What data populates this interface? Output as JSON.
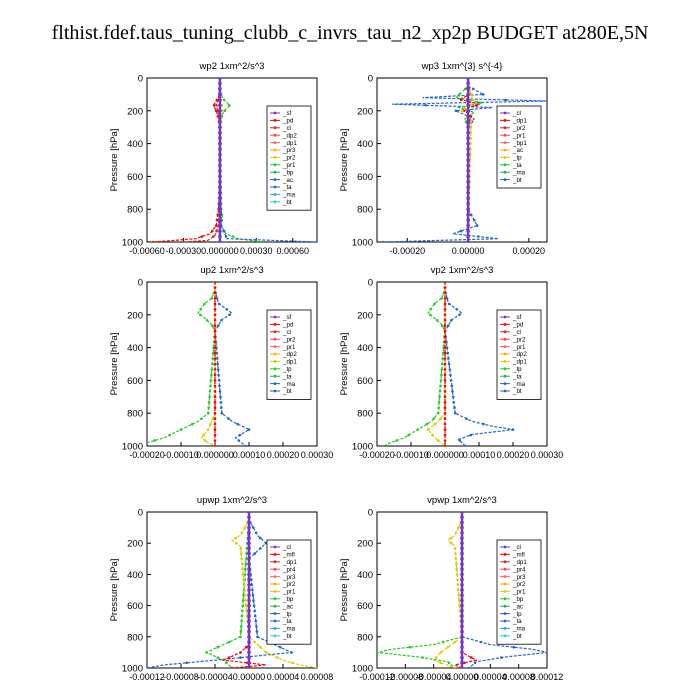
{
  "title": "flthist.fdef.taus_tuning_clubb_c_invrs_tau_n2_xp2p  BUDGET at280E,5N",
  "chart_data": [
    {
      "type": "line",
      "title": "wp2   1xm^2/s^3",
      "ylabel": "Pressure [hPa]",
      "ylim": [
        1000,
        0
      ],
      "xlim": [
        -0.0006,
        0.0008
      ],
      "xticks": [
        "-0.00060",
        "-0.00030",
        "0.000000",
        "0.00030",
        "0.00060"
      ],
      "xtick_values": [
        -0.0006,
        -0.0003,
        0.0,
        0.0003,
        0.0006
      ],
      "yticks": [
        0,
        200,
        400,
        600,
        800,
        1000
      ],
      "legend": [
        "_sf",
        "_pd",
        "_cl",
        "_dp2",
        "_dp1",
        "_pr3",
        "_pr2",
        "_pr1",
        "_bp",
        "_ac",
        "_ta",
        "_ma",
        "_bt"
      ],
      "series": [
        {
          "name": "_pd",
          "color": "#ff0000",
          "y": [
            50,
            100,
            130,
            150,
            170,
            200,
            250,
            300,
            400,
            600,
            800,
            900,
            950,
            980,
            1000
          ],
          "values": [
            0,
            0,
            -2e-05,
            -4e-05,
            -5e-05,
            -3e-05,
            -1e-05,
            0,
            0,
            0,
            -1e-05,
            -3e-05,
            -8e-05,
            -0.0002,
            -0.00055
          ]
        },
        {
          "name": "_cl",
          "color": "#dd2222",
          "y": [
            50,
            130,
            160,
            190,
            230,
            300,
            800,
            900,
            960,
            990,
            1000
          ],
          "values": [
            0,
            -1e-05,
            -3e-05,
            -2e-05,
            -1e-05,
            0,
            0,
            -1e-05,
            -4e-05,
            -0.0001,
            -0.0003
          ]
        },
        {
          "name": "_pr1",
          "color": "#22cc22",
          "y": [
            50,
            100,
            130,
            150,
            170,
            190,
            220,
            300,
            800,
            850,
            900,
            950,
            980,
            1000
          ],
          "values": [
            0,
            1e-05,
            3e-05,
            6e-05,
            8e-05,
            5e-05,
            2e-05,
            0,
            1e-05,
            2e-05,
            1e-05,
            5e-05,
            0.00015,
            0.00035
          ]
        },
        {
          "name": "_bp",
          "color": "#2266cc",
          "y": [
            50,
            300,
            900,
            980,
            1000
          ],
          "values": [
            0,
            0,
            1e-05,
            6e-05,
            0.0008
          ]
        },
        {
          "name": "_ac",
          "color": "#ddcc00",
          "y": [
            50,
            150,
            180,
            220,
            1000
          ],
          "values": [
            0,
            1e-05,
            2e-05,
            1e-05,
            0
          ]
        },
        {
          "name": "_ma",
          "color": "#7733cc",
          "y": [
            0,
            1000
          ],
          "values": [
            0,
            0
          ]
        }
      ]
    },
    {
      "type": "line",
      "title": "wp3   1xm^{3} s^{-4}",
      "ylabel": "Pressure [hPa]",
      "ylim": [
        1000,
        0
      ],
      "xlim": [
        -0.0003,
        0.00026
      ],
      "xticks": [
        "-0.00020",
        "0.00000",
        "0.00020"
      ],
      "xtick_values": [
        -0.0002,
        0.0,
        0.0002
      ],
      "yticks": [
        0,
        200,
        400,
        600,
        800,
        1000
      ],
      "legend": [
        "_cl",
        "_dp1",
        "_pr2",
        "_pr1",
        "_bp1",
        "_ac",
        "_tp",
        "_ta",
        "_ma",
        "_bt"
      ],
      "series": [
        {
          "name": "_tp",
          "color": "#2266cc",
          "y": [
            50,
            100,
            120,
            140,
            160,
            180,
            200,
            250,
            300,
            800,
            900,
            950,
            980,
            1000
          ],
          "values": [
            0,
            5e-05,
            -0.00015,
            0.00026,
            -0.00025,
            8e-05,
            -4e-05,
            2e-05,
            0,
            0,
            3e-05,
            -5e-05,
            0.0001,
            -0.00028
          ]
        },
        {
          "name": "_dp1",
          "color": "#ff0000",
          "y": [
            50,
            100,
            130,
            160,
            190,
            230,
            300,
            1000
          ],
          "values": [
            0,
            1e-05,
            -3e-05,
            4e-05,
            -2e-05,
            1e-05,
            0,
            0
          ]
        },
        {
          "name": "_ac",
          "color": "#22cc22",
          "y": [
            50,
            120,
            150,
            180,
            210,
            250,
            300,
            1000
          ],
          "values": [
            0,
            -4e-05,
            5e-05,
            -3e-05,
            2e-05,
            -1e-05,
            0,
            0
          ]
        },
        {
          "name": "_pr2",
          "color": "#ddcc00",
          "y": [
            50,
            150,
            200,
            250,
            1000
          ],
          "values": [
            0,
            2e-05,
            -2e-05,
            1e-05,
            0
          ]
        },
        {
          "name": "_ma",
          "color": "#7733cc",
          "y": [
            0,
            1000
          ],
          "values": [
            0,
            0
          ]
        }
      ]
    },
    {
      "type": "line",
      "title": "up2   1xm^2/s^3",
      "ylabel": "Pressure [hPa]",
      "ylim": [
        1000,
        0
      ],
      "xlim": [
        -0.0002,
        0.0003
      ],
      "xticks": [
        "-0.00020",
        "-0.00010",
        "0.000000",
        "0.00010",
        "0.00020",
        "0.00030"
      ],
      "xtick_values": [
        -0.0002,
        -0.0001,
        0.0,
        0.0001,
        0.0002,
        0.0003
      ],
      "yticks": [
        0,
        200,
        400,
        600,
        800,
        1000
      ],
      "legend": [
        "_sf",
        "_pd",
        "_cl",
        "_pr2",
        "_pr1",
        "_dp2",
        "_dp1",
        "_tp",
        "_ta",
        "_ma",
        "_bt"
      ],
      "series": [
        {
          "name": "_pr1",
          "color": "#22cc22",
          "y": [
            50,
            100,
            130,
            160,
            190,
            220,
            260,
            300,
            800,
            850,
            900,
            950,
            980,
            1000
          ],
          "values": [
            0,
            -1e-05,
            -3e-05,
            -4e-05,
            -5e-05,
            -3e-05,
            -1e-05,
            0,
            -2e-05,
            -5e-05,
            -0.0001,
            -0.00015,
            -0.0002,
            -0.00022
          ]
        },
        {
          "name": "_tp",
          "color": "#2266cc",
          "y": [
            50,
            130,
            160,
            190,
            230,
            300,
            800,
            850,
            900,
            950,
            1000
          ],
          "values": [
            0,
            1e-05,
            3e-05,
            5e-05,
            2e-05,
            0,
            2e-05,
            5e-05,
            0.0001,
            6e-05,
            9e-05
          ]
        },
        {
          "name": "_pr2",
          "color": "#ddcc00",
          "y": [
            50,
            800,
            900,
            950,
            980,
            1000
          ],
          "values": [
            0,
            0,
            -2e-05,
            -4e-05,
            -2e-05,
            0
          ]
        },
        {
          "name": "_pd",
          "color": "#ff0000",
          "y": [
            0,
            1000
          ],
          "values": [
            0,
            0
          ]
        }
      ]
    },
    {
      "type": "line",
      "title": "vp2   1xm^2/s^3",
      "ylabel": "Pressure [hPa]",
      "ylim": [
        1000,
        0
      ],
      "xlim": [
        -0.0002,
        0.0003
      ],
      "xticks": [
        "-0.00020",
        "-0.00010",
        "0.000000",
        "0.00010",
        "0.00020",
        "0.00030"
      ],
      "xtick_values": [
        -0.0002,
        -0.0001,
        0.0,
        0.0001,
        0.0002,
        0.0003
      ],
      "yticks": [
        0,
        200,
        400,
        600,
        800,
        1000
      ],
      "legend": [
        "_sf",
        "_pd",
        "_cl",
        "_pr2",
        "_pr1",
        "_dp2",
        "_dp1",
        "_tp",
        "_ta",
        "_ma",
        "_bt"
      ],
      "series": [
        {
          "name": "_pr1",
          "color": "#22cc22",
          "y": [
            50,
            100,
            130,
            160,
            190,
            220,
            260,
            300,
            800,
            850,
            900,
            950,
            980,
            1000
          ],
          "values": [
            0,
            -1e-05,
            -3e-05,
            -4e-05,
            -5e-05,
            -3e-05,
            -1e-05,
            0,
            -2e-05,
            -4e-05,
            -8e-05,
            -0.00012,
            -0.00016,
            -0.00018
          ]
        },
        {
          "name": "_tp",
          "color": "#2266cc",
          "y": [
            50,
            130,
            160,
            190,
            230,
            300,
            800,
            850,
            880,
            900,
            930,
            960,
            1000
          ],
          "values": [
            0,
            1e-05,
            3e-05,
            5e-05,
            2e-05,
            0,
            3e-05,
            8e-05,
            0.00014,
            0.0002,
            8e-05,
            4e-05,
            6e-05
          ]
        },
        {
          "name": "_pr2",
          "color": "#ddcc00",
          "y": [
            50,
            800,
            850,
            900,
            950,
            1000
          ],
          "values": [
            0,
            0,
            -2e-05,
            -5e-05,
            -3e-05,
            0
          ]
        },
        {
          "name": "_pd",
          "color": "#ff0000",
          "y": [
            0,
            1000
          ],
          "values": [
            0,
            0
          ]
        }
      ]
    },
    {
      "type": "line",
      "title": "upwp   1xm^2/s^3",
      "ylabel": "Pressure [hPa]",
      "ylim": [
        1000,
        0
      ],
      "xlim": [
        -0.00012,
        8e-05
      ],
      "xticks": [
        "-0.00012",
        "-0.00008",
        "-0.00004",
        "0.00000",
        "0.00004",
        "0.00008"
      ],
      "xtick_values": [
        -0.00012,
        -8e-05,
        -4e-05,
        0.0,
        4e-05,
        8e-05
      ],
      "yticks": [
        0,
        200,
        400,
        600,
        800,
        1000
      ],
      "legend": [
        "_cl",
        "_mfl",
        "_dp1",
        "_pr4",
        "_pr3",
        "_pr2",
        "_pr1",
        "_bp",
        "_ac",
        "_tp",
        "_ta",
        "_ma",
        "_bt"
      ],
      "series": [
        {
          "name": "_tp",
          "color": "#2266cc",
          "y": [
            50,
            150,
            200,
            250,
            300,
            800,
            850,
            900,
            950,
            980,
            1000
          ],
          "values": [
            0,
            1e-05,
            2e-05,
            1e-05,
            0,
            1e-05,
            3e-05,
            5e-05,
            -4e-05,
            -0.0001,
            -0.00012
          ]
        },
        {
          "name": "_pr1",
          "color": "#22cc22",
          "y": [
            50,
            800,
            850,
            900,
            950,
            1000
          ],
          "values": [
            0,
            -1e-05,
            -3e-05,
            -5e-05,
            -3e-05,
            -2e-05
          ]
        },
        {
          "name": "_pr2",
          "color": "#ddcc00",
          "y": [
            50,
            150,
            180,
            220,
            800,
            900,
            950,
            980,
            1000
          ],
          "values": [
            0,
            -1e-05,
            -2e-05,
            -1e-05,
            0,
            2e-05,
            4e-05,
            6e-05,
            8e-05
          ]
        },
        {
          "name": "_pr3",
          "color": "#ff0000",
          "y": [
            50,
            850,
            900,
            950,
            980,
            1000
          ],
          "values": [
            0,
            0,
            -1e-05,
            -3e-05,
            2e-05,
            -2e-05
          ]
        },
        {
          "name": "_ma",
          "color": "#7733cc",
          "y": [
            0,
            1000
          ],
          "values": [
            0,
            0
          ]
        }
      ]
    },
    {
      "type": "line",
      "title": "vpwp   1xm^2/s^3",
      "ylabel": "Pressure [hPa]",
      "ylim": [
        1000,
        0
      ],
      "xlim": [
        -0.00012,
        0.00012
      ],
      "xticks": [
        "-0.00012",
        "-0.00008",
        "-0.00004",
        "0.00000",
        "0.00004",
        "0.00008",
        "0.00012"
      ],
      "xtick_values": [
        -0.00012,
        -8e-05,
        -4e-05,
        0.0,
        4e-05,
        8e-05,
        0.00012
      ],
      "yticks": [
        0,
        200,
        400,
        600,
        800,
        1000
      ],
      "legend": [
        "_cl",
        "_mfl",
        "_dp1",
        "_pr4",
        "_pr3",
        "_pr2",
        "_pr1",
        "_bp",
        "_ac",
        "_tp",
        "_ta",
        "_ma",
        "_bt"
      ],
      "series": [
        {
          "name": "_tp",
          "color": "#2266cc",
          "y": [
            50,
            800,
            850,
            880,
            900,
            930,
            960,
            1000
          ],
          "values": [
            0,
            0,
            4e-05,
            0.0001,
            0.00012,
            6e-05,
            2e-05,
            1e-05
          ]
        },
        {
          "name": "_pr1",
          "color": "#22cc22",
          "y": [
            50,
            800,
            850,
            880,
            900,
            930,
            960,
            1000
          ],
          "values": [
            0,
            0,
            -4e-05,
            -0.0001,
            -0.00012,
            -6e-05,
            -2e-05,
            -1e-05
          ]
        },
        {
          "name": "_pr2",
          "color": "#ddcc00",
          "y": [
            50,
            150,
            180,
            220,
            800,
            900,
            950,
            1000
          ],
          "values": [
            0,
            -1e-05,
            -2e-05,
            -1e-05,
            0,
            -3e-05,
            -4e-05,
            -1e-05
          ]
        },
        {
          "name": "_pr3",
          "color": "#ff0000",
          "y": [
            50,
            900,
            950,
            980,
            1000
          ],
          "values": [
            0,
            0,
            2e-05,
            -1e-05,
            0
          ]
        },
        {
          "name": "_ma",
          "color": "#7733cc",
          "y": [
            0,
            1000
          ],
          "values": [
            0,
            0
          ]
        }
      ]
    }
  ]
}
